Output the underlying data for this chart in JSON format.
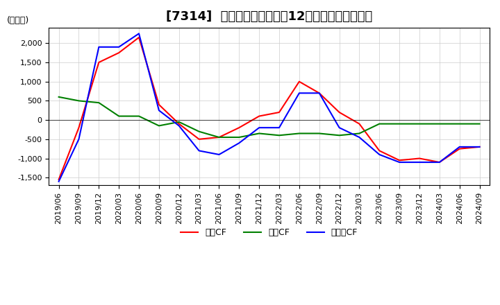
{
  "title": "[7314]  キャッシュフローの12か月移動合計の推移",
  "ylabel": "(百万円)",
  "ylim": [
    -1700,
    2400
  ],
  "yticks": [
    -1500,
    -1000,
    -500,
    0,
    500,
    1000,
    1500,
    2000
  ],
  "legend_labels": [
    "営業CF",
    "投資CF",
    "フリーCF"
  ],
  "line_colors": [
    "#ff0000",
    "#008000",
    "#0000ff"
  ],
  "dates": [
    "2019/06",
    "2019/09",
    "2019/12",
    "2020/03",
    "2020/06",
    "2020/09",
    "2020/12",
    "2021/03",
    "2021/06",
    "2021/09",
    "2021/12",
    "2022/03",
    "2022/06",
    "2022/09",
    "2022/12",
    "2023/03",
    "2023/06",
    "2023/09",
    "2023/12",
    "2024/03",
    "2024/06",
    "2024/09"
  ],
  "eigyo_cf": [
    -1550,
    -200,
    1500,
    1750,
    2150,
    400,
    -100,
    -500,
    -450,
    -200,
    100,
    200,
    1000,
    700,
    200,
    -100,
    -800,
    -1050,
    -1000,
    -1100,
    -750,
    -700
  ],
  "toshi_cf": [
    600,
    500,
    450,
    100,
    100,
    -150,
    -50,
    -300,
    -450,
    -450,
    -350,
    -400,
    -350,
    -350,
    -400,
    -350,
    -100,
    -100,
    -100,
    -100,
    -100,
    -100
  ],
  "free_cf": [
    -1600,
    -500,
    1900,
    1900,
    2250,
    250,
    -150,
    -800,
    -900,
    -600,
    -200,
    -200,
    700,
    700,
    -200,
    -450,
    -900,
    -1100,
    -1100,
    -1100,
    -700,
    -700
  ],
  "background_color": "#ffffff",
  "grid_color": "#cccccc",
  "title_fontsize": 13,
  "tick_fontsize": 8,
  "ylabel_fontsize": 9
}
